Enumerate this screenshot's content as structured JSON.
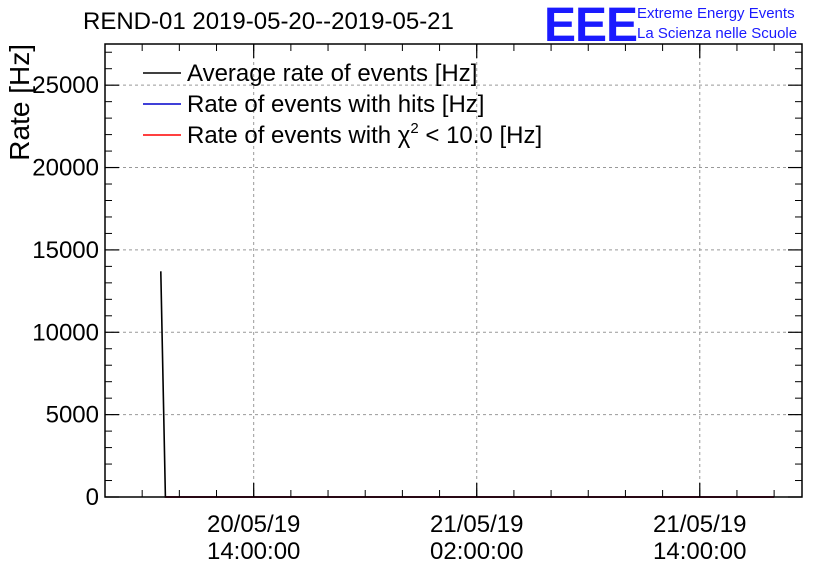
{
  "header": {
    "title": "REND-01 2019-05-20--2019-05-21",
    "logo_text": "EEE",
    "logo_line1": "Extreme Energy Events",
    "logo_line2": "La Scienza nelle Scuole"
  },
  "colors": {
    "average": "#000000",
    "hits": "#0000cc",
    "chi2": "#ff0000",
    "logo": "#1a1aff",
    "grid": "#999999"
  },
  "chart_data": {
    "type": "line",
    "title": "REND-01 2019-05-20--2019-05-21",
    "ylabel": "Rate [Hz]",
    "xlabel": "",
    "ylim": [
      0,
      27500
    ],
    "xlim": [
      "2019-05-20 06:00:00",
      "2019-05-21 19:30:00"
    ],
    "yticks": [
      {
        "value": 0,
        "label": "0"
      },
      {
        "value": 5000,
        "label": "5000"
      },
      {
        "value": 10000,
        "label": "10000"
      },
      {
        "value": 15000,
        "label": "15000"
      },
      {
        "value": 20000,
        "label": "20000"
      },
      {
        "value": 25000,
        "label": "25000"
      }
    ],
    "xticks": [
      {
        "value": "2019-05-20 14:00:00",
        "date": "20/05/19",
        "time": "14:00:00"
      },
      {
        "value": "2019-05-21 02:00:00",
        "date": "21/05/19",
        "time": "02:00:00"
      },
      {
        "value": "2019-05-21 14:00:00",
        "date": "21/05/19",
        "time": "14:00:00"
      }
    ],
    "grid": true,
    "legend_placement": "top-left",
    "series": [
      {
        "name": "Average rate of events [Hz]",
        "legend_main": "Average rate of events [Hz]",
        "legend_sup": "",
        "legend_tail": "",
        "color": "#000000",
        "points": [
          [
            "2019-05-20 09:00:00",
            13700
          ],
          [
            "2019-05-20 09:15:00",
            0
          ],
          [
            "2019-05-21 18:00:00",
            0
          ]
        ]
      },
      {
        "name": "Rate of events with hits [Hz]",
        "legend_main": "Rate of events with hits [Hz]",
        "legend_sup": "",
        "legend_tail": "",
        "color": "#0000cc",
        "points": [
          [
            "2019-05-20 09:15:00",
            0
          ],
          [
            "2019-05-21 18:00:00",
            0
          ]
        ]
      },
      {
        "name": "Rate of events with χ2 < 10.0 [Hz]",
        "legend_main": "Rate of events with χ",
        "legend_sup": "2",
        "legend_tail": " < 10.0 [Hz]",
        "color": "#ff0000",
        "points": [
          [
            "2019-05-20 09:15:00",
            0
          ],
          [
            "2019-05-21 18:00:00",
            0
          ]
        ]
      }
    ]
  }
}
